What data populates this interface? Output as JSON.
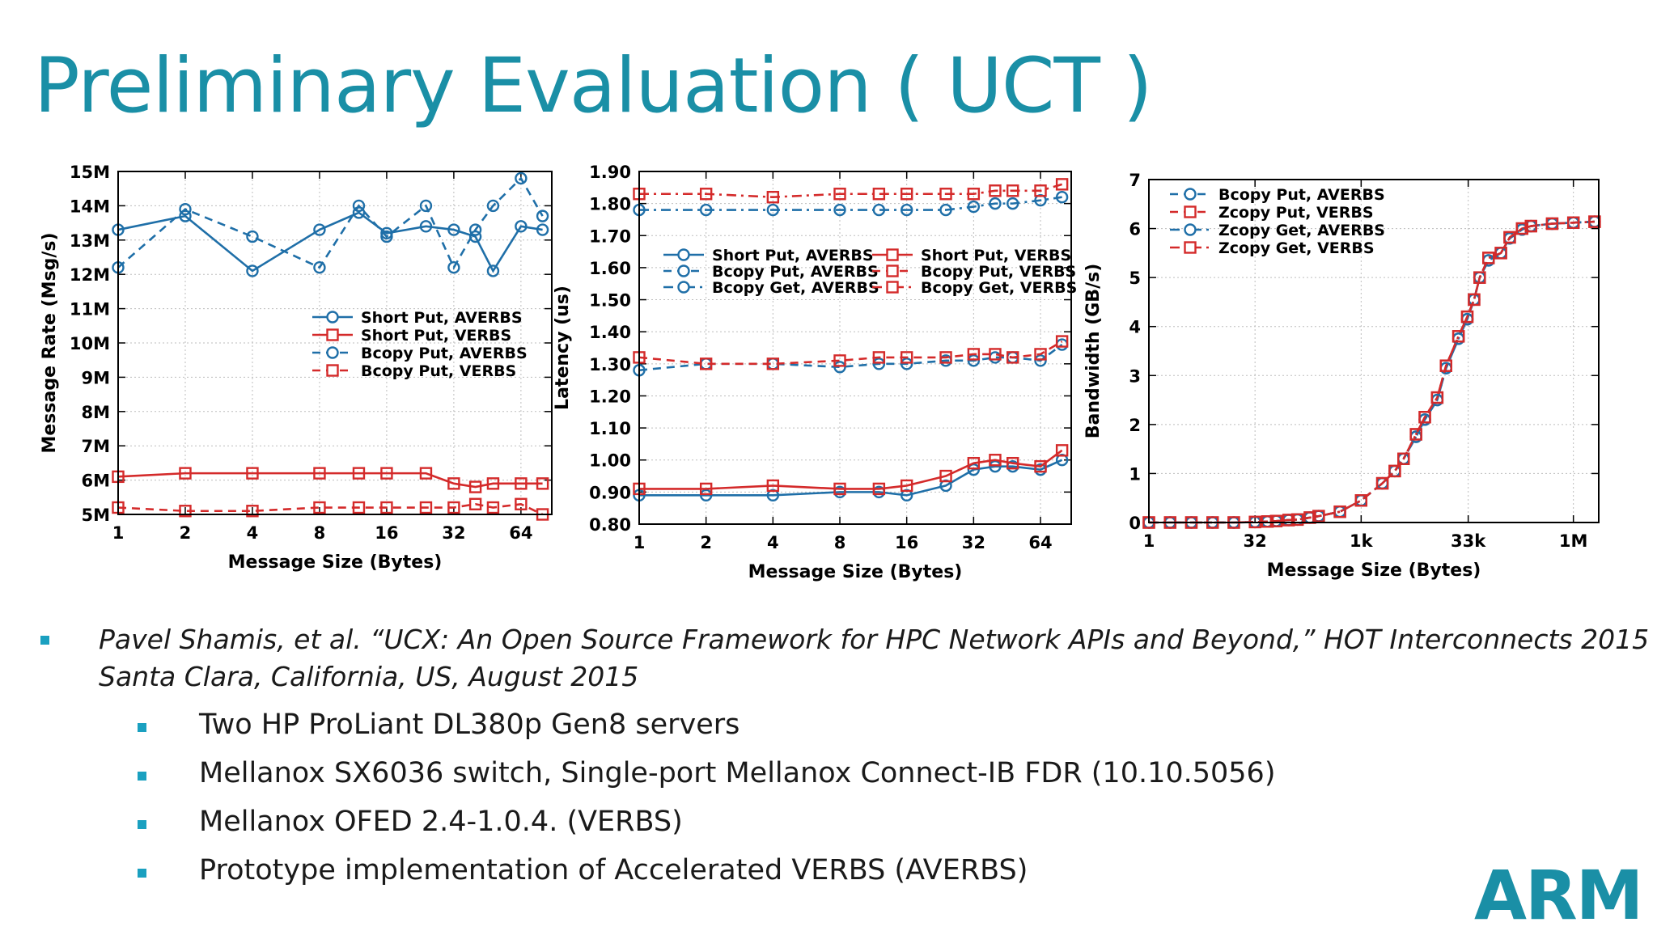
{
  "slide": {
    "title": "Preliminary Evaluation ( UCT )",
    "reference": {
      "line1": "Pavel Shamis,  et al. “UCX: An Open Source Framework for HPC Network APIs and Beyond,” HOT Interconnects 2015 -",
      "line2": "Santa Clara, California, US, August 2015"
    },
    "bullets": [
      "Two HP ProLiant DL380p Gen8 servers",
      "Mellanox SX6036 switch, Single-port Mellanox Connect-IB FDR (10.10.5056)",
      "Mellanox OFED 2.4-1.0.4. (VERBS)",
      "Prototype implementation of Accelerated VERBS (AVERBS)"
    ],
    "logo_text": "ARM",
    "colors": {
      "title": "#1a8fa6",
      "averbs": "#1f6fa8",
      "verbs": "#d42a2a",
      "bullet": "#1aa0c0"
    }
  },
  "chart_data": [
    {
      "type": "line",
      "xlabel": "Message Size (Bytes)",
      "ylabel": "Message Rate (Msg/s)",
      "x_scale": "log2",
      "x_ticks": [
        "1",
        "2",
        "4",
        "8",
        "16",
        "32",
        "64"
      ],
      "y_ticks": [
        "5M",
        "6M",
        "7M",
        "8M",
        "9M",
        "10M",
        "11M",
        "12M",
        "13M",
        "14M",
        "15M"
      ],
      "ylim": [
        5,
        15
      ],
      "grid": true,
      "legend_position": "center-right",
      "x": [
        1,
        2,
        4,
        8,
        12,
        16,
        24,
        32,
        40,
        48,
        64,
        80
      ],
      "series": [
        {
          "name": "Short Put, AVERBS",
          "style": "solid",
          "marker": "circle",
          "color": "#1f6fa8",
          "x": [
            1,
            2,
            4,
            8,
            12,
            16,
            24,
            32,
            40,
            48,
            64,
            80
          ],
          "values": [
            13.3,
            13.7,
            12.1,
            13.3,
            13.8,
            13.2,
            13.4,
            13.3,
            13.1,
            12.1,
            13.4,
            13.3
          ]
        },
        {
          "name": "Short Put, VERBS",
          "style": "solid",
          "marker": "square",
          "color": "#d42a2a",
          "x": [
            1,
            2,
            4,
            8,
            12,
            16,
            24,
            32,
            40,
            48,
            64,
            80
          ],
          "values": [
            6.1,
            6.2,
            6.2,
            6.2,
            6.2,
            6.2,
            6.2,
            5.9,
            5.8,
            5.9,
            5.9,
            5.9
          ]
        },
        {
          "name": "Bcopy Put, AVERBS",
          "style": "dashed",
          "marker": "circle",
          "color": "#1f6fa8",
          "x": [
            1,
            2,
            4,
            8,
            12,
            16,
            24,
            32,
            40,
            48,
            64,
            80
          ],
          "values": [
            12.2,
            13.9,
            13.1,
            12.2,
            14.0,
            13.1,
            14.0,
            12.2,
            13.3,
            14.0,
            14.8,
            13.7
          ]
        },
        {
          "name": "Bcopy Put, VERBS",
          "style": "dashed",
          "marker": "square",
          "color": "#d42a2a",
          "x": [
            1,
            2,
            4,
            8,
            12,
            16,
            24,
            32,
            40,
            48,
            64,
            80
          ],
          "values": [
            5.2,
            5.1,
            5.1,
            5.2,
            5.2,
            5.2,
            5.2,
            5.2,
            5.3,
            5.2,
            5.3,
            5.0
          ]
        }
      ]
    },
    {
      "type": "line",
      "xlabel": "Message Size (Bytes)",
      "ylabel": "Latency (us)",
      "x_scale": "log2",
      "x_ticks": [
        "1",
        "2",
        "4",
        "8",
        "16",
        "32",
        "64"
      ],
      "y_ticks": [
        "0.80",
        "0.90",
        "1.00",
        "1.10",
        "1.20",
        "1.30",
        "1.40",
        "1.50",
        "1.60",
        "1.70",
        "1.80",
        "1.90"
      ],
      "ylim": [
        0.8,
        1.9
      ],
      "grid": true,
      "legend_position": "upper-middle",
      "series": [
        {
          "name": "Short Put, AVERBS",
          "style": "solid",
          "marker": "circle",
          "color": "#1f6fa8",
          "x": [
            1,
            2,
            4,
            8,
            12,
            16,
            24,
            32,
            40,
            48,
            64,
            80
          ],
          "values": [
            0.89,
            0.89,
            0.89,
            0.9,
            0.9,
            0.89,
            0.92,
            0.97,
            0.98,
            0.98,
            0.97,
            1.0
          ]
        },
        {
          "name": "Bcopy Put, AVERBS",
          "style": "dashed",
          "marker": "circle",
          "color": "#1f6fa8",
          "x": [
            1,
            2,
            4,
            8,
            12,
            16,
            24,
            32,
            40,
            48,
            64,
            80
          ],
          "values": [
            1.28,
            1.3,
            1.3,
            1.29,
            1.3,
            1.3,
            1.31,
            1.31,
            1.32,
            1.32,
            1.31,
            1.36
          ]
        },
        {
          "name": "Bcopy Get, AVERBS",
          "style": "dashdot",
          "marker": "circle",
          "color": "#1f6fa8",
          "x": [
            1,
            2,
            4,
            8,
            12,
            16,
            24,
            32,
            40,
            48,
            64,
            80
          ],
          "values": [
            1.78,
            1.78,
            1.78,
            1.78,
            1.78,
            1.78,
            1.78,
            1.79,
            1.8,
            1.8,
            1.81,
            1.82
          ]
        },
        {
          "name": "Short Put, VERBS",
          "style": "solid",
          "marker": "square",
          "color": "#d42a2a",
          "x": [
            1,
            2,
            4,
            8,
            12,
            16,
            24,
            32,
            40,
            48,
            64,
            80
          ],
          "values": [
            0.91,
            0.91,
            0.92,
            0.91,
            0.91,
            0.92,
            0.95,
            0.99,
            1.0,
            0.99,
            0.98,
            1.03
          ]
        },
        {
          "name": "Bcopy Put, VERBS",
          "style": "dashed",
          "marker": "square",
          "color": "#d42a2a",
          "x": [
            1,
            2,
            4,
            8,
            12,
            16,
            24,
            32,
            40,
            48,
            64,
            80
          ],
          "values": [
            1.32,
            1.3,
            1.3,
            1.31,
            1.32,
            1.32,
            1.32,
            1.33,
            1.33,
            1.32,
            1.33,
            1.37
          ]
        },
        {
          "name": "Bcopy Get, VERBS",
          "style": "dashdot",
          "marker": "square",
          "color": "#d42a2a",
          "x": [
            1,
            2,
            4,
            8,
            12,
            16,
            24,
            32,
            40,
            48,
            64,
            80
          ],
          "values": [
            1.83,
            1.83,
            1.82,
            1.83,
            1.83,
            1.83,
            1.83,
            1.83,
            1.84,
            1.84,
            1.84,
            1.86
          ]
        }
      ]
    },
    {
      "type": "line",
      "xlabel": "Message Size (Bytes)",
      "ylabel": "Bandwidth (GB/s)",
      "x_scale": "log2",
      "x_ticks": [
        "1",
        "32",
        "1k",
        "33k",
        "1M"
      ],
      "x_tick_values": [
        1,
        32,
        1024,
        33792,
        1048576
      ],
      "y_ticks": [
        "0",
        "1",
        "2",
        "3",
        "4",
        "5",
        "6",
        "7"
      ],
      "ylim": [
        0,
        7
      ],
      "grid": true,
      "legend_position": "top-left",
      "series": [
        {
          "name": "Bcopy Put, AVERBS",
          "style": "dashed",
          "marker": "circle",
          "color": "#1f6fa8",
          "x": [
            1,
            2,
            4,
            8,
            16,
            32,
            48,
            64,
            96,
            128,
            192,
            256,
            512,
            1024,
            2048,
            3072,
            4096,
            6144,
            8192,
            12288,
            16384,
            24576,
            32768,
            40960,
            49152,
            65536,
            98304,
            131072,
            196608,
            262144,
            524288,
            1048576,
            2097152
          ],
          "values": [
            0,
            0,
            0,
            0,
            0,
            0.01,
            0.02,
            0.03,
            0.05,
            0.06,
            0.1,
            0.13,
            0.22,
            0.45,
            0.8,
            1.05,
            1.3,
            1.75,
            2.1,
            2.5,
            3.15,
            3.75,
            4.15,
            4.55,
            5.0,
            5.35,
            5.5,
            5.8,
            5.98,
            6.05,
            6.1,
            6.12,
            6.14
          ]
        },
        {
          "name": "Zcopy Put, VERBS",
          "style": "dashed",
          "marker": "square",
          "color": "#d42a2a",
          "x": [
            1,
            2,
            4,
            8,
            16,
            32,
            48,
            64,
            96,
            128,
            192,
            256,
            512,
            1024,
            2048,
            3072,
            4096,
            6144,
            8192,
            12288,
            16384,
            24576,
            32768,
            40960,
            49152,
            65536,
            98304,
            131072,
            196608,
            262144,
            524288,
            1048576,
            2097152
          ],
          "values": [
            0,
            0,
            0,
            0,
            0,
            0.01,
            0.02,
            0.03,
            0.05,
            0.06,
            0.1,
            0.13,
            0.22,
            0.45,
            0.8,
            1.05,
            1.3,
            1.8,
            2.15,
            2.55,
            3.2,
            3.8,
            4.2,
            4.55,
            5.0,
            5.4,
            5.5,
            5.82,
            6.0,
            6.05,
            6.1,
            6.12,
            6.14
          ]
        },
        {
          "name": "Zcopy Get, AVERBS",
          "style": "dashdot",
          "marker": "circle",
          "color": "#1f6fa8",
          "x": [
            1,
            2,
            4,
            8,
            16,
            32,
            48,
            64,
            96,
            128,
            192,
            256,
            512,
            1024,
            2048,
            3072,
            4096,
            6144,
            8192,
            12288,
            16384,
            24576,
            32768,
            40960,
            49152,
            65536,
            98304,
            131072,
            196608,
            262144,
            524288,
            1048576,
            2097152
          ],
          "values": [
            0,
            0,
            0,
            0,
            0,
            0.01,
            0.02,
            0.03,
            0.05,
            0.06,
            0.1,
            0.13,
            0.22,
            0.45,
            0.8,
            1.05,
            1.3,
            1.75,
            2.1,
            2.5,
            3.15,
            3.75,
            4.15,
            4.55,
            5.0,
            5.35,
            5.5,
            5.8,
            5.98,
            6.05,
            6.1,
            6.12,
            6.14
          ]
        },
        {
          "name": "Zcopy Get, VERBS",
          "style": "dashdot",
          "marker": "square",
          "color": "#d42a2a",
          "x": [
            1,
            2,
            4,
            8,
            16,
            32,
            48,
            64,
            96,
            128,
            192,
            256,
            512,
            1024,
            2048,
            3072,
            4096,
            6144,
            8192,
            12288,
            16384,
            24576,
            32768,
            40960,
            49152,
            65536,
            98304,
            131072,
            196608,
            262144,
            524288,
            1048576,
            2097152
          ],
          "values": [
            0,
            0,
            0,
            0,
            0,
            0.01,
            0.02,
            0.03,
            0.05,
            0.06,
            0.1,
            0.13,
            0.22,
            0.45,
            0.8,
            1.05,
            1.3,
            1.8,
            2.15,
            2.55,
            3.2,
            3.8,
            4.2,
            4.55,
            5.0,
            5.4,
            5.5,
            5.82,
            6.0,
            6.05,
            6.1,
            6.12,
            6.14
          ]
        }
      ]
    }
  ]
}
